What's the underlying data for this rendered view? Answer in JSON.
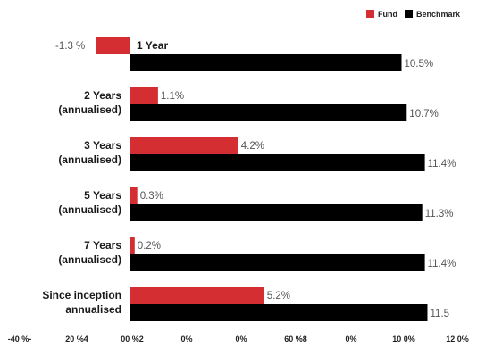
{
  "chart_data": {
    "type": "bar",
    "orientation": "horizontal",
    "legend_position": "top-right",
    "grid": false,
    "xlim": [
      -4,
      12
    ],
    "categories": [
      [
        "",
        "1 Year"
      ],
      [
        "2 Years",
        "(annualised)"
      ],
      [
        "3 Years",
        "(annualised)"
      ],
      [
        "5 Years",
        "(annualised)"
      ],
      [
        "7 Years",
        "(annualised)"
      ],
      [
        "Since inception",
        "annualised"
      ]
    ],
    "series": [
      {
        "name": "Fund",
        "color": "#d42e33",
        "values": [
          -1.3,
          1.1,
          4.2,
          0.3,
          0.2,
          5.2
        ],
        "labels": [
          "-1.3 %",
          "1.1%",
          "4.2%",
          "0.3%",
          "0.2%",
          "5.2%"
        ]
      },
      {
        "name": "Benchmark",
        "color": "#000000",
        "values": [
          10.5,
          10.7,
          11.4,
          11.3,
          11.4,
          11.5
        ],
        "labels": [
          "10.5%",
          "10.7%",
          "11.4%",
          "11.3%",
          "11.4%",
          "11.5"
        ]
      }
    ],
    "x_ticks": [
      {
        "value": -4,
        "label": "-40 %-"
      },
      {
        "value": -2,
        "label": "20 %4"
      },
      {
        "value": 0,
        "label": "00 %2"
      },
      {
        "value": 2,
        "label": "0%"
      },
      {
        "value": 4,
        "label": "0%"
      },
      {
        "value": 6,
        "label": "60 %8"
      },
      {
        "value": 8,
        "label": "0%"
      },
      {
        "value": 10,
        "label": "10 0%"
      },
      {
        "value": 12,
        "label": "12 0%"
      }
    ]
  }
}
